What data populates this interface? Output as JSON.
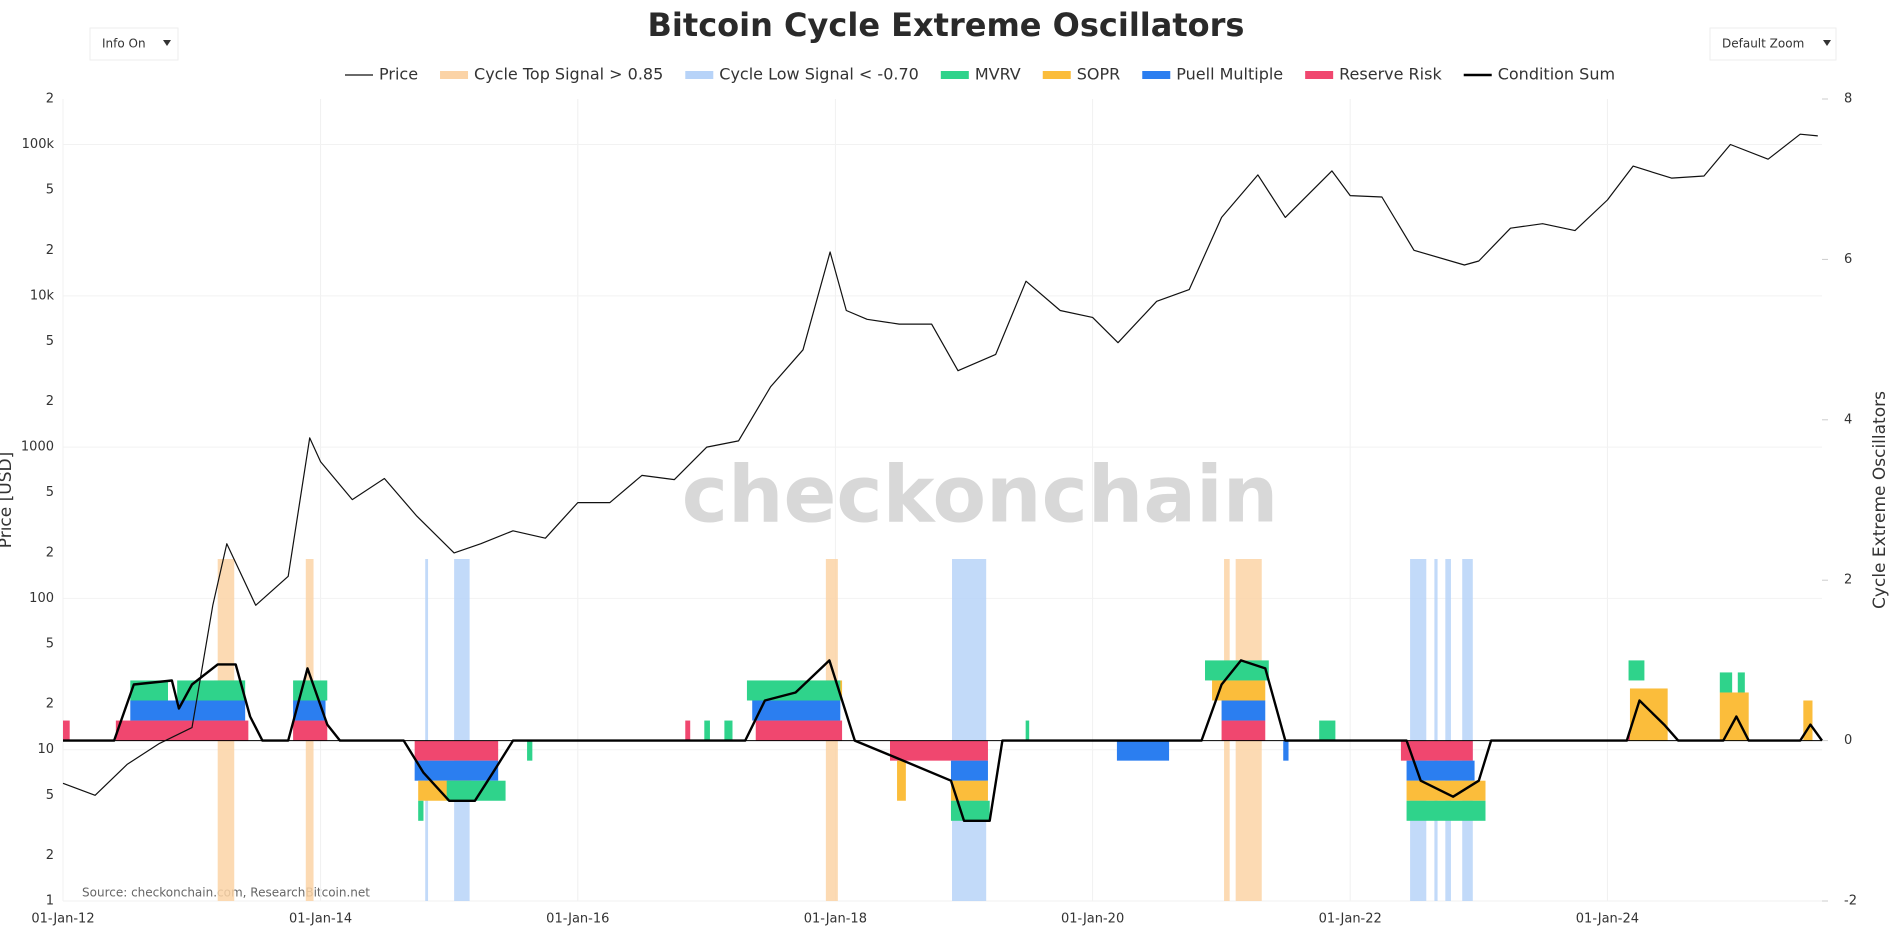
{
  "chart_data": {
    "type": "oscillator",
    "title": "Bitcoin Cycle Extreme Oscillators",
    "controls": [
      "Info On",
      "Default Zoom"
    ],
    "watermark": "checkonchain",
    "source": "Source: checkonchain.com, ResearchBitcoin.net",
    "y_label": "Price [USD]",
    "y2_label": "Cycle Extreme Oscillators",
    "log_y": true,
    "grid": true,
    "xlim": [
      "2012-01-01",
      "2025-09-01"
    ],
    "xticks": [
      {
        "value": "2012-01-01",
        "label": "01-Jan-12"
      },
      {
        "value": "2014-01-01",
        "label": "01-Jan-14"
      },
      {
        "value": "2016-01-01",
        "label": "01-Jan-16"
      },
      {
        "value": "2018-01-01",
        "label": "01-Jan-18"
      },
      {
        "value": "2020-01-01",
        "label": "01-Jan-20"
      },
      {
        "value": "2022-01-01",
        "label": "01-Jan-22"
      },
      {
        "value": "2024-01-01",
        "label": "01-Jan-24"
      }
    ],
    "ylim": [
      1,
      200000
    ],
    "yticks": [
      1,
      2,
      5,
      10,
      {
        "value": 20,
        "label": "2"
      },
      {
        "value": 50,
        "label": "5"
      },
      100,
      {
        "value": 200,
        "label": "2"
      },
      {
        "value": 500,
        "label": "5"
      },
      1000,
      {
        "value": 2000,
        "label": "2"
      },
      {
        "value": 5000,
        "label": "5"
      },
      {
        "value": 10000,
        "label": "10k"
      },
      {
        "value": 20000,
        "label": "2"
      },
      {
        "value": 50000,
        "label": "5"
      },
      {
        "value": 100000,
        "label": "100k"
      },
      {
        "value": 200000,
        "label": "2"
      }
    ],
    "y2lim": [
      -2,
      8
    ],
    "y2ticks": [
      -2,
      0,
      2,
      4,
      6,
      8
    ],
    "price": {
      "name": "Price",
      "color": "#111111",
      "x": [
        "2012-01-01",
        "2012-04-01",
        "2012-07-01",
        "2012-10-01",
        "2013-01-01",
        "2013-03-01",
        "2013-04-10",
        "2013-07-01",
        "2013-10-01",
        "2013-12-01",
        "2014-01-01",
        "2014-04-01",
        "2014-07-01",
        "2014-10-01",
        "2015-01-15",
        "2015-04-01",
        "2015-07-01",
        "2015-10-01",
        "2016-01-01",
        "2016-04-01",
        "2016-07-01",
        "2016-10-01",
        "2017-01-01",
        "2017-04-01",
        "2017-07-01",
        "2017-10-01",
        "2017-12-17",
        "2018-02-01",
        "2018-04-01",
        "2018-07-01",
        "2018-10-01",
        "2018-12-15",
        "2019-04-01",
        "2019-06-26",
        "2019-10-01",
        "2020-01-01",
        "2020-03-13",
        "2020-07-01",
        "2020-10-01",
        "2021-01-01",
        "2021-04-14",
        "2021-07-01",
        "2021-11-10",
        "2022-01-01",
        "2022-04-01",
        "2022-07-01",
        "2022-11-21",
        "2023-01-01",
        "2023-04-01",
        "2023-07-01",
        "2023-10-01",
        "2024-01-01",
        "2024-03-14",
        "2024-07-01",
        "2024-10-01",
        "2024-12-15",
        "2025-04-01",
        "2025-07-01",
        "2025-08-20"
      ],
      "values": [
        6,
        5,
        8,
        11,
        14,
        90,
        230,
        90,
        140,
        1150,
        800,
        450,
        620,
        350,
        200,
        230,
        280,
        250,
        430,
        430,
        650,
        610,
        1000,
        1100,
        2500,
        4400,
        19500,
        8000,
        7000,
        6500,
        6500,
        3200,
        4100,
        12500,
        8000,
        7200,
        4900,
        9200,
        11000,
        33000,
        63000,
        33000,
        67000,
        46000,
        45000,
        20000,
        16000,
        17000,
        28000,
        30000,
        27000,
        43000,
        72000,
        60000,
        62000,
        100000,
        80000,
        117000,
        114000
      ]
    },
    "bands": [
      {
        "name": "Cycle Top Signal > 0.85",
        "color": "#fbd3a6",
        "periods": [
          {
            "start": "2013-03-15",
            "end": "2013-05-01"
          },
          {
            "start": "2013-11-20",
            "end": "2013-12-12"
          },
          {
            "start": "2017-12-05",
            "end": "2018-01-08"
          },
          {
            "start": "2021-01-08",
            "end": "2021-01-24"
          },
          {
            "start": "2021-02-10",
            "end": "2021-04-25"
          }
        ]
      },
      {
        "name": "Cycle Low Signal < -0.70",
        "color": "#b7d3f8",
        "periods": [
          {
            "start": "2014-10-25",
            "end": "2014-11-02"
          },
          {
            "start": "2015-01-15",
            "end": "2015-02-28"
          },
          {
            "start": "2018-11-28",
            "end": "2019-03-05"
          },
          {
            "start": "2022-06-20",
            "end": "2022-08-05"
          },
          {
            "start": "2022-08-28",
            "end": "2022-09-06"
          },
          {
            "start": "2022-09-28",
            "end": "2022-10-14"
          },
          {
            "start": "2022-11-15",
            "end": "2022-12-15"
          }
        ]
      }
    ],
    "series": [
      {
        "name": "Reserve Risk",
        "color": "#f0476f",
        "periods": [
          {
            "start": "2012-01-01",
            "end": "2012-01-20",
            "value": 0.25
          },
          {
            "start": "2012-05-30",
            "end": "2013-06-10",
            "value": 0.25
          },
          {
            "start": "2013-10-15",
            "end": "2014-01-20",
            "value": 0.25
          },
          {
            "start": "2016-11-01",
            "end": "2016-11-15",
            "value": 0.25
          },
          {
            "start": "2017-05-20",
            "end": "2018-01-20",
            "value": 0.25
          },
          {
            "start": "2021-01-01",
            "end": "2021-05-05",
            "value": 0.25
          },
          {
            "start": "2024-03-01",
            "end": "2024-04-15",
            "value": 0.1
          },
          {
            "start": "2014-09-25",
            "end": "2015-05-20",
            "value": -0.25
          },
          {
            "start": "2018-06-05",
            "end": "2019-03-10",
            "value": -0.25
          },
          {
            "start": "2022-05-25",
            "end": "2022-12-15",
            "value": -0.25
          }
        ]
      },
      {
        "name": "Puell Multiple",
        "color": "#2b7ef0",
        "periods": [
          {
            "start": "2012-07-10",
            "end": "2013-06-01",
            "value": 0.25
          },
          {
            "start": "2013-10-15",
            "end": "2014-01-15",
            "value": 0.25
          },
          {
            "start": "2017-05-10",
            "end": "2018-01-15",
            "value": 0.25
          },
          {
            "start": "2021-01-01",
            "end": "2021-05-05",
            "value": 0.25
          },
          {
            "start": "2014-09-25",
            "end": "2015-05-20",
            "value": -0.25
          },
          {
            "start": "2018-11-25",
            "end": "2019-03-10",
            "value": -0.25
          },
          {
            "start": "2020-03-10",
            "end": "2020-08-05",
            "value": -0.25
          },
          {
            "start": "2021-06-25",
            "end": "2021-07-10",
            "value": -0.25
          },
          {
            "start": "2022-06-10",
            "end": "2022-12-20",
            "value": -0.25
          }
        ]
      },
      {
        "name": "SOPR",
        "color": "#fbbd3b",
        "periods": [
          {
            "start": "2013-03-05",
            "end": "2013-05-25",
            "value": 0.25
          },
          {
            "start": "2017-09-20",
            "end": "2018-01-20",
            "value": 0.25
          },
          {
            "start": "2020-12-05",
            "end": "2021-05-05",
            "value": 0.25
          },
          {
            "start": "2024-03-05",
            "end": "2024-06-20",
            "value": 0.65
          },
          {
            "start": "2024-11-15",
            "end": "2025-02-05",
            "value": 0.6
          },
          {
            "start": "2025-07-10",
            "end": "2025-08-05",
            "value": 0.5
          },
          {
            "start": "2014-10-05",
            "end": "2015-03-05",
            "value": -0.25
          },
          {
            "start": "2018-06-25",
            "end": "2018-07-20",
            "value": -0.5
          },
          {
            "start": "2018-11-25",
            "end": "2019-03-10",
            "value": -0.25
          },
          {
            "start": "2022-06-10",
            "end": "2023-01-20",
            "value": -0.25
          }
        ]
      },
      {
        "name": "MVRV",
        "color": "#2fd38b",
        "periods": [
          {
            "start": "2012-07-10",
            "end": "2012-10-25",
            "value": 0.25
          },
          {
            "start": "2012-11-20",
            "end": "2013-06-01",
            "value": 0.25
          },
          {
            "start": "2013-10-15",
            "end": "2014-01-20",
            "value": 0.25
          },
          {
            "start": "2016-12-25",
            "end": "2017-01-10",
            "value": 0.25
          },
          {
            "start": "2017-02-20",
            "end": "2017-03-15",
            "value": 0.25
          },
          {
            "start": "2017-04-25",
            "end": "2018-01-15",
            "value": 0.25
          },
          {
            "start": "2019-06-25",
            "end": "2019-07-05",
            "value": 0.25
          },
          {
            "start": "2020-11-15",
            "end": "2021-05-15",
            "value": 0.25
          },
          {
            "start": "2021-10-05",
            "end": "2021-11-20",
            "value": 0.25
          },
          {
            "start": "2024-03-01",
            "end": "2024-04-15",
            "value": 0.25
          },
          {
            "start": "2024-11-15",
            "end": "2024-12-20",
            "value": 0.25
          },
          {
            "start": "2025-01-05",
            "end": "2025-01-25",
            "value": 0.25
          },
          {
            "start": "2014-10-05",
            "end": "2014-10-20",
            "value": -0.25
          },
          {
            "start": "2014-12-25",
            "end": "2015-06-10",
            "value": -0.25
          },
          {
            "start": "2015-08-10",
            "end": "2015-08-25",
            "value": -0.25
          },
          {
            "start": "2018-11-25",
            "end": "2019-03-15",
            "value": -0.25
          },
          {
            "start": "2022-06-10",
            "end": "2023-01-20",
            "value": -0.25
          }
        ]
      }
    ],
    "condition_sum": {
      "name": "Condition Sum",
      "color": "#000000",
      "x": [
        "2012-01-01",
        "2012-05-25",
        "2012-07-20",
        "2012-11-05",
        "2012-11-25",
        "2013-01-01",
        "2013-03-15",
        "2013-05-05",
        "2013-06-15",
        "2013-07-20",
        "2013-10-01",
        "2013-11-25",
        "2014-01-20",
        "2014-02-25",
        "2014-08-25",
        "2014-10-20",
        "2015-01-01",
        "2015-03-15",
        "2015-05-05",
        "2015-07-01",
        "2017-04-20",
        "2017-06-15",
        "2017-09-10",
        "2017-12-15",
        "2018-01-20",
        "2018-02-25",
        "2018-06-15",
        "2018-11-25",
        "2019-01-01",
        "2019-03-15",
        "2019-04-20",
        "2020-11-05",
        "2021-01-01",
        "2021-02-25",
        "2021-05-05",
        "2021-07-01",
        "2022-06-10",
        "2022-07-20",
        "2022-10-20",
        "2023-01-01",
        "2023-02-05",
        "2024-02-25",
        "2024-04-01",
        "2024-06-10",
        "2024-07-20",
        "2024-11-25",
        "2025-01-01",
        "2025-02-05",
        "2025-07-01",
        "2025-07-30",
        "2025-09-01"
      ],
      "values": [
        0,
        0,
        0.7,
        0.75,
        0.4,
        0.7,
        0.95,
        0.95,
        0.3,
        0,
        0,
        0.9,
        0.2,
        0,
        0,
        -0.4,
        -0.75,
        -0.75,
        -0.4,
        0,
        0,
        0.5,
        0.6,
        1.0,
        0.5,
        0,
        -0.2,
        -0.5,
        -1.0,
        -1.0,
        0,
        0,
        0.7,
        1.0,
        0.9,
        0,
        0,
        -0.5,
        -0.7,
        -0.5,
        0,
        0,
        0.5,
        0.2,
        0,
        0,
        0.3,
        0,
        0,
        0.2,
        0
      ]
    }
  }
}
